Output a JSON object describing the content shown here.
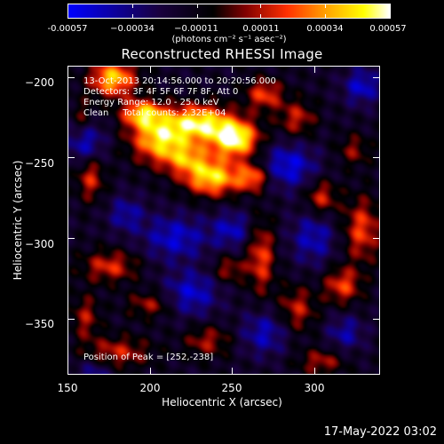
{
  "chart_data": {
    "type": "heatmap",
    "title": "Reconstructed RHESSI Image",
    "xlabel": "Heliocentric X (arcsec)",
    "ylabel": "Heliocentric Y (arcsec)",
    "xlim": [
      150,
      340
    ],
    "ylim": [
      -385,
      -193
    ],
    "x_ticks": [
      150,
      200,
      250,
      300
    ],
    "x_tick_labels": [
      "150",
      "200",
      "250",
      "300"
    ],
    "y_ticks": [
      -200,
      -250,
      -300,
      -350
    ],
    "y_tick_labels": [
      "−200",
      "−250",
      "−300",
      "−350"
    ],
    "colorbar": {
      "min": -0.00057,
      "max": 0.00057,
      "ticks": [
        -0.00057,
        -0.00034,
        -0.00011,
        0.00011,
        0.00034,
        0.00057
      ],
      "tick_labels": [
        "-0.00057",
        "−0.00034",
        "−0.00011",
        "0.00011",
        "0.00034",
        "0.00057"
      ],
      "unit_label": "(photons cm⁻² s⁻¹ asec⁻²)",
      "colormap": [
        "#0000ff",
        "#1a0040",
        "#000000",
        "#800000",
        "#ff3000",
        "#ffa000",
        "#ffff00",
        "#ffffff"
      ]
    },
    "annotations": [
      "13-Oct-2013 20:14:56.000 to 20:20:56.000",
      "Detectors: 3F 4F 5F 6F 7F 8F, Att 0",
      "Energy Range: 12.0 - 25.0 keV",
      "Clean     Total counts: 2.32E+04",
      "Position of Peak = [252,-238]"
    ],
    "peak": {
      "x": 252,
      "y": -238
    },
    "sources": [
      {
        "x": 252,
        "y": -238,
        "amp": 1.0,
        "sx": 10,
        "sy": 8
      },
      {
        "x": 230,
        "y": -228,
        "amp": 0.9,
        "sx": 14,
        "sy": 8
      },
      {
        "x": 205,
        "y": -238,
        "amp": 0.8,
        "sx": 12,
        "sy": 10
      },
      {
        "x": 195,
        "y": -222,
        "amp": 0.75,
        "sx": 9,
        "sy": 6
      },
      {
        "x": 177,
        "y": -200,
        "amp": 0.8,
        "sx": 10,
        "sy": 8
      },
      {
        "x": 238,
        "y": -262,
        "amp": 0.85,
        "sx": 12,
        "sy": 8
      },
      {
        "x": 263,
        "y": -262,
        "amp": 0.6,
        "sx": 7,
        "sy": 6
      },
      {
        "x": 222,
        "y": -250,
        "amp": 0.55,
        "sx": 10,
        "sy": 7
      },
      {
        "x": 163,
        "y": -262,
        "amp": 0.45,
        "sx": 6,
        "sy": 10
      },
      {
        "x": 270,
        "y": -210,
        "amp": 0.5,
        "sx": 8,
        "sy": 7
      },
      {
        "x": 290,
        "y": -225,
        "amp": 0.4,
        "sx": 8,
        "sy": 8
      },
      {
        "x": 305,
        "y": -275,
        "amp": 0.45,
        "sx": 7,
        "sy": 8
      },
      {
        "x": 330,
        "y": -295,
        "amp": 0.5,
        "sx": 8,
        "sy": 14
      },
      {
        "x": 268,
        "y": -312,
        "amp": 0.5,
        "sx": 6,
        "sy": 16
      },
      {
        "x": 248,
        "y": -320,
        "amp": 0.35,
        "sx": 7,
        "sy": 6
      },
      {
        "x": 175,
        "y": -318,
        "amp": 0.45,
        "sx": 12,
        "sy": 7
      },
      {
        "x": 200,
        "y": -342,
        "amp": 0.35,
        "sx": 10,
        "sy": 6
      },
      {
        "x": 180,
        "y": -372,
        "amp": 0.4,
        "sx": 14,
        "sy": 7
      },
      {
        "x": 235,
        "y": -365,
        "amp": 0.35,
        "sx": 10,
        "sy": 7
      },
      {
        "x": 290,
        "y": -345,
        "amp": 0.4,
        "sx": 8,
        "sy": 10
      },
      {
        "x": 318,
        "y": -330,
        "amp": 0.5,
        "sx": 8,
        "sy": 8
      },
      {
        "x": 305,
        "y": -378,
        "amp": 0.35,
        "sx": 10,
        "sy": 6
      },
      {
        "x": 160,
        "y": -350,
        "amp": 0.35,
        "sx": 6,
        "sy": 10
      },
      {
        "x": 325,
        "y": -245,
        "amp": 0.3,
        "sx": 7,
        "sy": 7
      },
      {
        "x": 158,
        "y": -225,
        "amp": 0.3,
        "sx": 5,
        "sy": 8
      }
    ],
    "negatives": [
      {
        "x": 160,
        "y": -240,
        "amp": 0.45,
        "sx": 8,
        "sy": 10
      },
      {
        "x": 285,
        "y": -255,
        "amp": 0.5,
        "sx": 12,
        "sy": 10
      },
      {
        "x": 300,
        "y": -300,
        "amp": 0.4,
        "sx": 10,
        "sy": 12
      },
      {
        "x": 215,
        "y": -300,
        "amp": 0.45,
        "sx": 14,
        "sy": 10
      },
      {
        "x": 250,
        "y": -295,
        "amp": 0.4,
        "sx": 9,
        "sy": 8
      },
      {
        "x": 225,
        "y": -335,
        "amp": 0.45,
        "sx": 12,
        "sy": 10
      },
      {
        "x": 270,
        "y": -360,
        "amp": 0.4,
        "sx": 10,
        "sy": 10
      },
      {
        "x": 330,
        "y": -205,
        "amp": 0.45,
        "sx": 8,
        "sy": 8
      },
      {
        "x": 185,
        "y": -285,
        "amp": 0.35,
        "sx": 8,
        "sy": 8
      },
      {
        "x": 165,
        "y": -385,
        "amp": 0.3,
        "sx": 8,
        "sy": 6
      },
      {
        "x": 320,
        "y": -360,
        "amp": 0.35,
        "sx": 8,
        "sy": 8
      }
    ]
  },
  "footer": {
    "timestamp": "17-May-2022 03:02"
  }
}
